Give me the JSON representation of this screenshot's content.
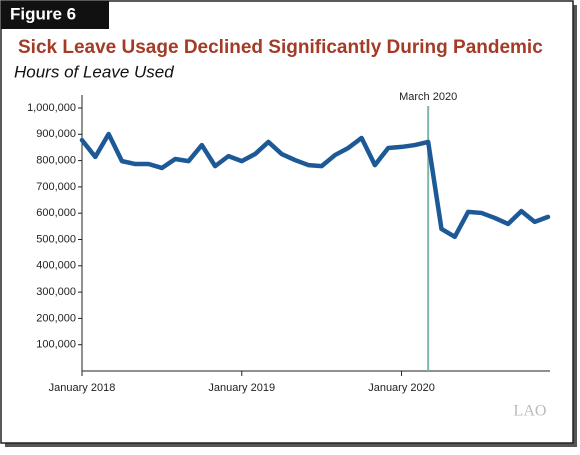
{
  "chart_data": {
    "type": "line",
    "figure_label": "Figure 6",
    "title": "Sick Leave Usage Declined Significantly During Pandemic",
    "subtitle": "Hours of Leave Used",
    "logo": "LAO",
    "categories": [
      "January 2018",
      null,
      null,
      null,
      null,
      null,
      null,
      null,
      null,
      null,
      null,
      null,
      "January 2019",
      null,
      null,
      null,
      null,
      null,
      null,
      null,
      null,
      null,
      null,
      null,
      "January 2020",
      null,
      null,
      null,
      null,
      null,
      null,
      null,
      null,
      null,
      null,
      null
    ],
    "series": [
      {
        "name": "Hours of Leave Used",
        "color": "#1d5996",
        "values": [
          878000,
          814000,
          901000,
          798000,
          787000,
          787000,
          772000,
          806000,
          798000,
          859000,
          779000,
          817000,
          798000,
          825000,
          871000,
          825000,
          802000,
          783000,
          779000,
          821000,
          848000,
          886000,
          783000,
          848000,
          852000,
          859000,
          871000,
          540000,
          510000,
          605000,
          601000,
          582000,
          559000,
          608000,
          567000,
          586000
        ]
      }
    ],
    "ylim": [
      0,
      1000000
    ],
    "yticks": [
      {
        "value": 100000,
        "label": "100,000"
      },
      {
        "value": 200000,
        "label": "200,000"
      },
      {
        "value": 300000,
        "label": "300,000"
      },
      {
        "value": 400000,
        "label": "400,000"
      },
      {
        "value": 500000,
        "label": "500,000"
      },
      {
        "value": 600000,
        "label": "600,000"
      },
      {
        "value": 700000,
        "label": "700,000"
      },
      {
        "value": 800000,
        "label": "800,000"
      },
      {
        "value": 900000,
        "label": "900,000"
      },
      {
        "value": 1000000,
        "label": "1,000,000"
      }
    ],
    "annotations": [
      {
        "text": "March 2020",
        "category_index": 26,
        "color": "#7fb5aa"
      }
    ]
  }
}
